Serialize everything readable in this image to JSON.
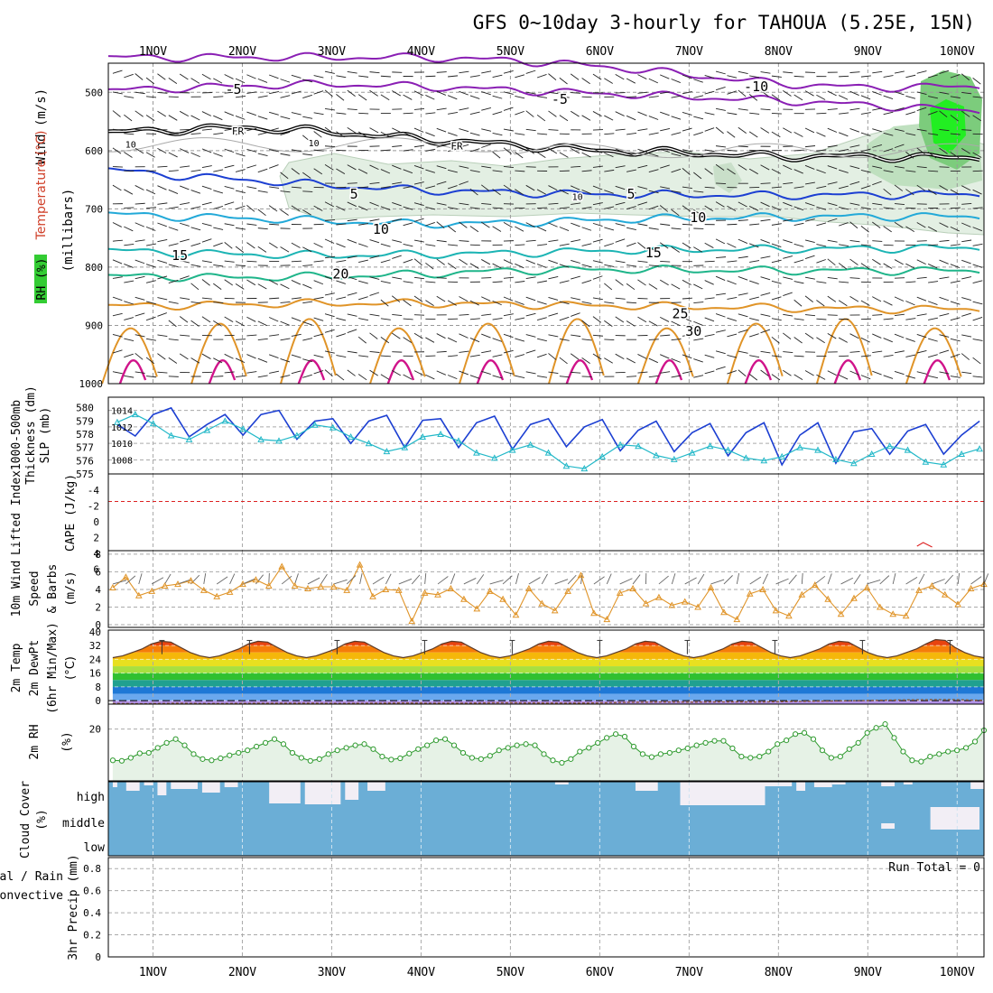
{
  "title": "GFS 0~10day 3-hourly for TAHOUA (5.25E, 15N)",
  "x_ticks": [
    "1NOV",
    "2NOV",
    "3NOV",
    "4NOV",
    "5NOV",
    "6NOV",
    "7NOV",
    "8NOV",
    "9NOV",
    "10NOV"
  ],
  "colors": {
    "purple": "#8a1fb4",
    "blue": "#1c3fd2",
    "cyan": "#22a9d8",
    "teal": "#1cb4b4",
    "green": "#1fb58a",
    "orange": "#e09428",
    "magenta": "#d0138a",
    "rh_fill": "#e6f2e6",
    "rh_line": "#2e9a2e",
    "cloud": "#6baed6",
    "slp": "#1c3fd2",
    "thick": "#22b8c8",
    "wind10": "#e09428",
    "lifted": "#dd2222",
    "cape": "#b070d0"
  },
  "panels": {
    "upper": {
      "ylabel_parts": [
        "Wind (m/s)",
        "Temperature (°C)",
        "(millibars)",
        "RH (%)"
      ],
      "y_ticks": [
        500,
        600,
        700,
        800,
        900,
        1000
      ],
      "contour_labels": [
        {
          "text": "-5",
          "day": 1.9,
          "p": 495,
          "color": "purple"
        },
        {
          "text": "-10",
          "day": 7.75,
          "p": 490,
          "color": "purple"
        },
        {
          "text": "-5",
          "day": 5.55,
          "p": 512,
          "color": "purple"
        },
        {
          "text": "FR",
          "day": 1.95,
          "p": 565,
          "color": "black"
        },
        {
          "text": "FR",
          "day": 4.4,
          "p": 590,
          "color": "black"
        },
        {
          "text": "5",
          "day": 3.25,
          "p": 675,
          "color": "blue"
        },
        {
          "text": "5",
          "day": 6.35,
          "p": 675,
          "color": "blue"
        },
        {
          "text": "10",
          "day": 3.55,
          "p": 735,
          "color": "cyan"
        },
        {
          "text": "10",
          "day": 7.1,
          "p": 715,
          "color": "cyan"
        },
        {
          "text": "15",
          "day": 1.3,
          "p": 780,
          "color": "teal"
        },
        {
          "text": "15",
          "day": 6.6,
          "p": 775,
          "color": "teal"
        },
        {
          "text": "20",
          "day": 3.1,
          "p": 812,
          "color": "green"
        },
        {
          "text": "25",
          "day": 6.9,
          "p": 880,
          "color": "orange"
        },
        {
          "text": "30",
          "day": 7.05,
          "p": 910,
          "color": "orange"
        },
        {
          "text": "10",
          "day": 0.75,
          "p": 587,
          "color": "gray"
        },
        {
          "text": "10",
          "day": 2.8,
          "p": 585,
          "color": "gray"
        },
        {
          "text": "10",
          "day": 5.75,
          "p": 677,
          "color": "gray"
        }
      ]
    },
    "slp": {
      "ylabel_parts": [
        "1000-500mb",
        "Thickness (dm)",
        "SLP (mb)"
      ],
      "left_ticks": [
        575,
        576,
        577,
        578,
        579,
        580
      ],
      "right_ticks": [
        1008,
        1010,
        1012,
        1014
      ]
    },
    "cape": {
      "ylabel_parts": [
        "Lifted Index",
        "CAPE (J/kg)"
      ],
      "ticks": [
        "-4",
        "-2",
        "0",
        "2",
        "4",
        "6"
      ]
    },
    "wind": {
      "ylabel_parts": [
        "10m Wind",
        "Speed",
        "& Barbs",
        "(m/s)"
      ],
      "ticks": [
        0,
        2,
        4,
        6,
        8
      ]
    },
    "temp": {
      "ylabel_parts": [
        "2m Temp",
        "2m DewPt",
        "(6hr Min/Max)",
        "(°C)"
      ],
      "ticks": [
        0,
        8,
        16,
        24,
        32,
        40
      ]
    },
    "rh": {
      "ylabel_parts": [
        "2m RH",
        "(%)"
      ],
      "ticks": [
        20
      ]
    },
    "cloud": {
      "ylabel_parts": [
        "Cloud Cover",
        "(%)"
      ],
      "levels": [
        "high",
        "middle",
        "low"
      ]
    },
    "precip": {
      "ylabel_parts": [
        "Total / Rain",
        "Convective",
        "3hr Precip (mm)"
      ],
      "ticks": [
        "0",
        "0.2",
        "0.4",
        "0.6",
        "0.8"
      ],
      "run_total": "Run Total = 0"
    }
  },
  "chart_data": [
    {
      "type": "line",
      "title": "GFS 0~10day 3-hourly for TAHOUA (5.25E, 15N)",
      "panel": "upper-air temperature contours",
      "xlabel": "",
      "ylabel": "(millibars)",
      "ylim": [
        1000,
        450
      ],
      "series": [
        {
          "name": "-10",
          "values_p": [
            440,
            440,
            440,
            440,
            440,
            445,
            455,
            470,
            485,
            492,
            490
          ]
        },
        {
          "name": "-5",
          "values_p": [
            500,
            494,
            489,
            486,
            490,
            496,
            502,
            508,
            514,
            522,
            530
          ]
        },
        {
          "name": "FR",
          "values_p": [
            572,
            566,
            560,
            568,
            580,
            590,
            600,
            604,
            610,
            610,
            612
          ]
        },
        {
          "name": "5",
          "values_p": [
            625,
            640,
            650,
            660,
            668,
            672,
            675,
            676,
            677,
            676,
            675
          ]
        },
        {
          "name": "10",
          "values_p": [
            705,
            712,
            716,
            721,
            726,
            724,
            719,
            716,
            714,
            713,
            713
          ]
        },
        {
          "name": "15",
          "values_p": [
            768,
            774,
            778,
            780,
            778,
            776,
            772,
            770,
            769,
            768,
            767
          ]
        },
        {
          "name": "20",
          "values_p": [
            815,
            816,
            818,
            816,
            812,
            806,
            804,
            805,
            806,
            806,
            806
          ]
        },
        {
          "name": "25",
          "values_p": [
            868,
            866,
            864,
            862,
            862,
            864,
            866,
            868,
            870,
            872,
            872
          ]
        }
      ]
    },
    {
      "type": "line",
      "panel": "SLP and thickness",
      "series": [
        {
          "name": "SLP (mb)",
          "values": [
            1012.3,
            1010.9,
            1013.5,
            1014.3,
            1010.8,
            1012.3,
            1013.5,
            1011.0,
            1013.5,
            1014.0,
            1010.5,
            1012.7,
            1013.0,
            1010.0,
            1012.7,
            1013.4,
            1009.5,
            1012.8,
            1013.0,
            1009.5,
            1012.5,
            1013.3,
            1009.3,
            1012.3,
            1013.0,
            1009.6,
            1012.0,
            1012.9,
            1009.1,
            1011.6,
            1012.7,
            1009.0,
            1011.3,
            1012.4,
            1008.5,
            1011.3,
            1012.5,
            1007.4,
            1011.0,
            1012.5,
            1007.6,
            1011.4,
            1011.8,
            1008.7,
            1011.5,
            1012.3,
            1008.7,
            1011.0,
            1012.7
          ]
        },
        {
          "name": "1000-500mb Thickness (dm)",
          "values": [
            578.9,
            579.5,
            578.8,
            577.9,
            577.6,
            578.3,
            579.0,
            578.4,
            577.6,
            577.5,
            577.9,
            578.7,
            578.5,
            577.8,
            577.3,
            576.7,
            577.0,
            577.8,
            578.0,
            577.5,
            576.6,
            576.2,
            576.8,
            577.2,
            576.6,
            575.6,
            575.4,
            576.3,
            577.2,
            577.1,
            576.4,
            576.1,
            576.6,
            577.1,
            576.8,
            576.2,
            576.0,
            576.3,
            577.0,
            576.8,
            576.1,
            575.8,
            576.5,
            577.1,
            576.8,
            575.9,
            575.7,
            576.5,
            576.9
          ]
        }
      ]
    },
    {
      "type": "line",
      "panel": "10m wind speed",
      "ylim": [
        0,
        8
      ],
      "series": [
        {
          "name": "10m Wind Speed (m/s)",
          "values": [
            4.2,
            5.4,
            3.3,
            3.8,
            4.4,
            4.6,
            5.0,
            3.9,
            3.2,
            3.7,
            4.6,
            5.1,
            4.4,
            6.6,
            4.4,
            4.1,
            4.3,
            4.3,
            3.9,
            6.8,
            3.2,
            4.0,
            3.9,
            0.4,
            3.6,
            3.4,
            4.1,
            2.9,
            1.8,
            3.8,
            2.9,
            1.1,
            4.1,
            2.4,
            1.6,
            3.8,
            5.6,
            1.3,
            0.6,
            3.6,
            4.1,
            2.4,
            3.1,
            2.2,
            2.6,
            2.0,
            4.2,
            1.4,
            0.6,
            3.5,
            4.0,
            1.6,
            1.0,
            3.4,
            4.5,
            2.9,
            1.2,
            3.0,
            4.2,
            2.0,
            1.2,
            1.0,
            3.9,
            4.4,
            3.4,
            2.3,
            4.1,
            4.6
          ]
        }
      ]
    },
    {
      "type": "area",
      "panel": "2m temperature",
      "ylim": [
        0,
        40
      ],
      "series": [
        {
          "name": "2m Temp (°C)",
          "values": [
            25,
            26,
            28,
            30,
            33,
            34.5,
            34,
            31,
            28,
            26,
            25,
            26,
            28,
            30,
            33,
            34.5,
            34,
            31,
            28,
            26,
            25,
            26,
            28,
            30,
            33,
            34.5,
            34,
            31,
            28,
            26,
            25,
            26,
            28,
            30,
            33,
            34.5,
            34,
            31,
            28,
            26,
            25,
            26,
            28,
            30,
            33,
            34.5,
            34,
            31,
            28,
            26,
            25,
            26,
            28,
            30,
            33,
            34.5,
            34,
            31,
            28,
            26,
            25,
            26,
            28,
            30,
            33,
            34.5,
            34,
            31,
            28,
            26,
            25,
            26,
            28,
            30,
            33,
            34.5,
            34,
            31,
            28,
            26,
            25,
            26,
            28,
            30,
            33,
            35.5,
            35,
            31,
            28,
            26,
            25
          ]
        },
        {
          "name": "2m DewPt (°C)",
          "values": [
            -1.6,
            -1.8,
            -1.5,
            -1.7,
            -1.6,
            -1.5,
            -1.4,
            -1.6,
            -1.5,
            -1.3,
            -1.5,
            -1.4,
            -1.2,
            -1.3,
            -1.4,
            -1.3,
            -1.0,
            -0.8,
            -0.9,
            -0.7,
            -0.8,
            -0.5,
            -0.2,
            0.0,
            0.3,
            0.5,
            0.6,
            0.2
          ]
        }
      ]
    },
    {
      "type": "line",
      "panel": "2m RH",
      "ylim": [
        0,
        30
      ],
      "series": [
        {
          "name": "2m RH (%)",
          "values": [
            7.5,
            7.3,
            8.5,
            10.3,
            10.5,
            12.5,
            14.5,
            16.0,
            13.5,
            10.0,
            8.0,
            7.5,
            8.3,
            9.5,
            10.5,
            11.5,
            13.0,
            14.5,
            16.0,
            14.0,
            10.5,
            8.5,
            7.3,
            8.0,
            10.0,
            11.5,
            12.5,
            13.5,
            14.0,
            12.0,
            9.0,
            7.8,
            8.3,
            10.2,
            12.0,
            13.5,
            15.5,
            16.0,
            13.5,
            10.5,
            8.5,
            8.0,
            9.3,
            11.5,
            12.5,
            13.5,
            14.0,
            13.5,
            10.0,
            7.5,
            6.5,
            8.0,
            11.0,
            12.5,
            14.5,
            16.5,
            18.0,
            17.0,
            13.0,
            10.0,
            8.8,
            10.0,
            10.5,
            11.5,
            12.3,
            13.5,
            14.5,
            15.3,
            15.3,
            12.3,
            9.0,
            8.5,
            9.0,
            11.0,
            14.0,
            15.5,
            18.0,
            18.5,
            16.0,
            11.5,
            8.5,
            9.0,
            12.0,
            14.5,
            18.5,
            20.5,
            22.0,
            16.5,
            11.0,
            7.5,
            7.0,
            9.0,
            10.0,
            11.0,
            11.5,
            12.5,
            15.0,
            19.5
          ]
        }
      ]
    },
    {
      "type": "line",
      "panel": "3hr Precip",
      "ylim": [
        0,
        0.9
      ],
      "series": [
        {
          "name": "3hr Precip (mm)",
          "values": [
            0,
            0,
            0,
            0,
            0,
            0,
            0,
            0,
            0,
            0
          ]
        }
      ]
    }
  ]
}
